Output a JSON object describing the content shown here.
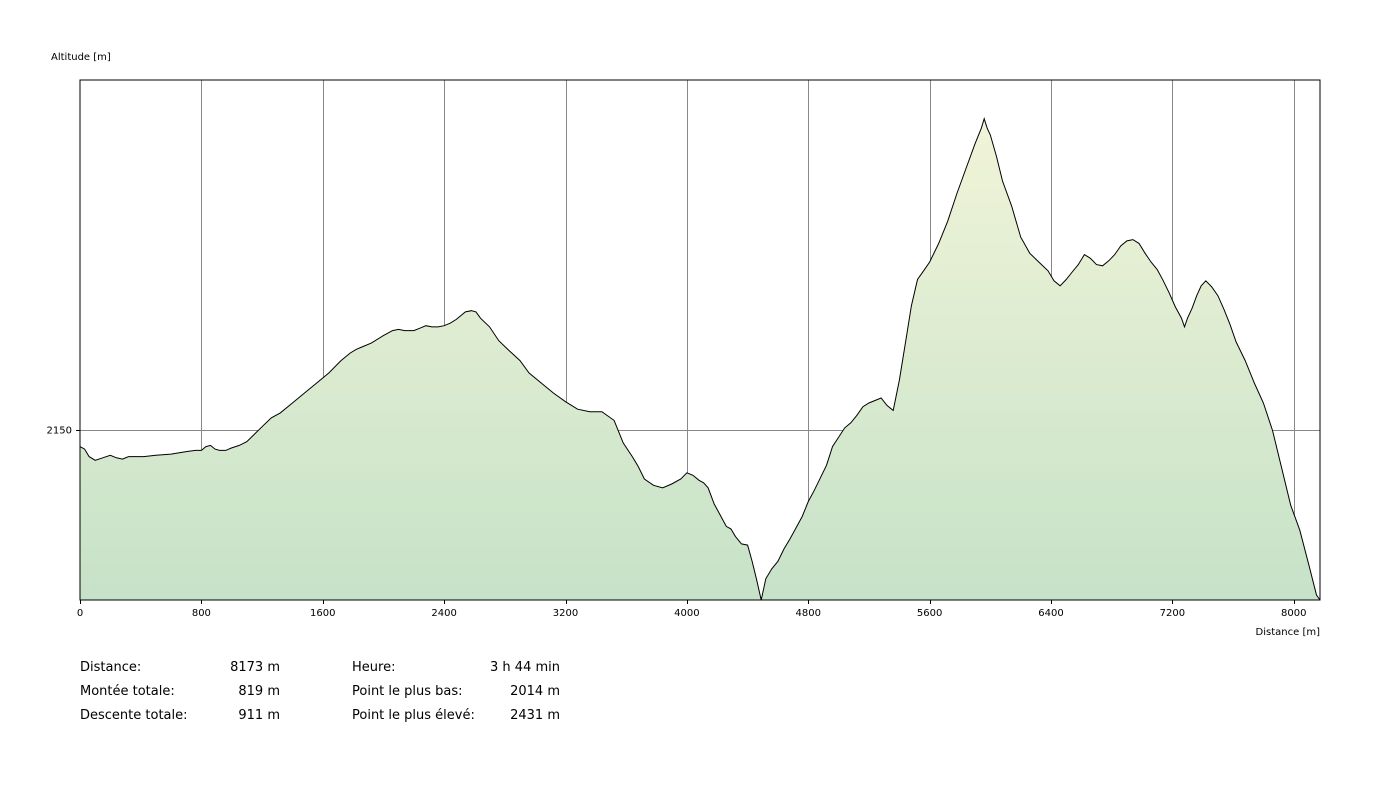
{
  "chart_data": {
    "type": "area",
    "title": "",
    "ylabel": "Altitude [m]",
    "xlabel": "Distance [m]",
    "xlim": [
      0,
      8173
    ],
    "ylim": [
      2014,
      2431
    ],
    "x_ticks": [
      0,
      800,
      1600,
      2400,
      3200,
      4000,
      4800,
      5600,
      6400,
      7200,
      8000
    ],
    "y_ticks": [
      2150
    ],
    "grid": true,
    "colors": {
      "line": "#000000",
      "fill_top": "#f1f4d8",
      "fill_bottom": "#c6e2c8",
      "grid": "#888888"
    },
    "series": [
      {
        "x": [
          0,
          30,
          60,
          100,
          150,
          200,
          240,
          280,
          320,
          360,
          420,
          500,
          600,
          700,
          760,
          800,
          830,
          860,
          890,
          920,
          960,
          1000,
          1050,
          1100,
          1150,
          1200,
          1260,
          1320,
          1400,
          1480,
          1560,
          1640,
          1720,
          1780,
          1820,
          1860,
          1920,
          2000,
          2060,
          2100,
          2140,
          2200,
          2240,
          2280,
          2320,
          2360,
          2400,
          2440,
          2480,
          2540,
          2580,
          2610,
          2640,
          2700,
          2760,
          2820,
          2900,
          2960,
          3040,
          3120,
          3200,
          3280,
          3360,
          3440,
          3520,
          3580,
          3640,
          3680,
          3720,
          3780,
          3840,
          3900,
          3960,
          4000,
          4040,
          4080,
          4110,
          4140,
          4180,
          4220,
          4260,
          4290,
          4320,
          4360,
          4400,
          4430,
          4460,
          4490,
          4520,
          4560,
          4600,
          4640,
          4680,
          4720,
          4760,
          4800,
          4840,
          4880,
          4920,
          4960,
          5040,
          5080,
          5120,
          5160,
          5200,
          5240,
          5280,
          5320,
          5360,
          5400,
          5440,
          5480,
          5520,
          5560,
          5600,
          5660,
          5720,
          5780,
          5840,
          5900,
          5940,
          5960,
          5980,
          6000,
          6040,
          6080,
          6140,
          6200,
          6260,
          6320,
          6380,
          6420,
          6460,
          6500,
          6540,
          6580,
          6620,
          6660,
          6700,
          6740,
          6780,
          6820,
          6860,
          6900,
          6940,
          6980,
          7020,
          7060,
          7100,
          7140,
          7180,
          7220,
          7260,
          7280,
          7300,
          7330,
          7360,
          7390,
          7420,
          7460,
          7500,
          7540,
          7580,
          7620,
          7680,
          7740,
          7800,
          7860,
          7920,
          7980,
          8040,
          8100,
          8150,
          8173
        ],
        "y": [
          2137,
          2135,
          2129,
          2126,
          2128,
          2130,
          2128,
          2127,
          2129,
          2129,
          2129,
          2130,
          2131,
          2133,
          2134,
          2134,
          2137,
          2138,
          2135,
          2134,
          2134,
          2136,
          2138,
          2141,
          2147,
          2153,
          2160,
          2164,
          2172,
          2180,
          2188,
          2196,
          2206,
          2212,
          2215,
          2217,
          2220,
          2226,
          2230,
          2231,
          2230,
          2230,
          2232,
          2234,
          2233,
          2233,
          2234,
          2236,
          2239,
          2245,
          2246,
          2245,
          2240,
          2233,
          2222,
          2215,
          2206,
          2196,
          2188,
          2180,
          2173,
          2167,
          2165,
          2165,
          2158,
          2140,
          2129,
          2121,
          2111,
          2106,
          2104,
          2107,
          2111,
          2116,
          2114,
          2110,
          2108,
          2104,
          2091,
          2082,
          2073,
          2071,
          2065,
          2059,
          2058,
          2045,
          2030,
          2014,
          2031,
          2039,
          2045,
          2055,
          2063,
          2072,
          2081,
          2093,
          2102,
          2112,
          2122,
          2137,
          2152,
          2156,
          2162,
          2169,
          2172,
          2174,
          2176,
          2170,
          2166,
          2190,
          2220,
          2250,
          2271,
          2278,
          2285,
          2300,
          2318,
          2340,
          2360,
          2380,
          2392,
          2400,
          2392,
          2387,
          2370,
          2350,
          2330,
          2305,
          2292,
          2285,
          2278,
          2270,
          2266,
          2271,
          2277,
          2283,
          2291,
          2288,
          2283,
          2282,
          2286,
          2291,
          2298,
          2302,
          2303,
          2300,
          2292,
          2285,
          2279,
          2270,
          2260,
          2249,
          2240,
          2233,
          2240,
          2248,
          2258,
          2266,
          2270,
          2265,
          2258,
          2247,
          2235,
          2221,
          2206,
          2188,
          2172,
          2150,
          2120,
          2090,
          2070,
          2042,
          2018,
          2014
        ]
      }
    ]
  },
  "stats": {
    "left": [
      {
        "label": "Distance:",
        "value": "8173 m"
      },
      {
        "label": "Montée totale:",
        "value": "819 m"
      },
      {
        "label": "Descente totale:",
        "value": "911 m"
      }
    ],
    "right": [
      {
        "label": "Heure:",
        "value": "3 h 44 min"
      },
      {
        "label": "Point le plus bas:",
        "value": "2014 m"
      },
      {
        "label": "Point le plus élevé:",
        "value": "2431 m"
      }
    ]
  }
}
